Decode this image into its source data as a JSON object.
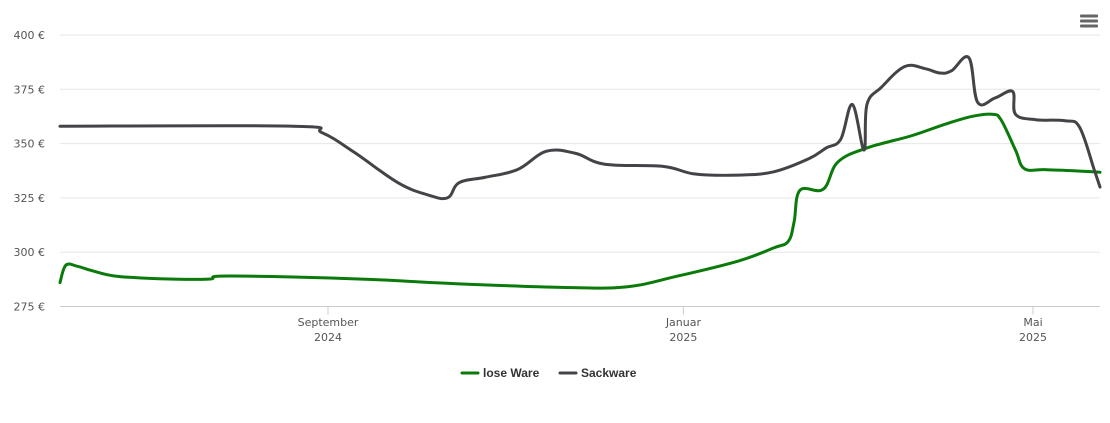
{
  "chart_data": {
    "type": "line",
    "title": "",
    "xlabel": "",
    "ylabel": "",
    "ylim": [
      275,
      400
    ],
    "yticks": [
      {
        "value": 275,
        "label": "275 €"
      },
      {
        "value": 300,
        "label": "300 €"
      },
      {
        "value": 325,
        "label": "325 €"
      },
      {
        "value": 350,
        "label": "350 €"
      },
      {
        "value": 375,
        "label": "375 €"
      },
      {
        "value": 400,
        "label": "400 €"
      }
    ],
    "xlim": [
      "2024-06-01",
      "2025-05-24"
    ],
    "xticks": [
      {
        "date": "2024-09-01",
        "month": "September",
        "year": "2024"
      },
      {
        "date": "2025-01-01",
        "month": "Januar",
        "year": "2025"
      },
      {
        "date": "2025-05-01",
        "month": "Mai",
        "year": "2025"
      }
    ],
    "grid": "horizontal",
    "legend_position": "bottom-center",
    "series": [
      {
        "name": "lose Ware",
        "color": "#0a7a0a",
        "points": [
          [
            "2024-06-01",
            286
          ],
          [
            "2024-06-03",
            294
          ],
          [
            "2024-06-07",
            293.5
          ],
          [
            "2024-06-12",
            291.5
          ],
          [
            "2024-06-20",
            289
          ],
          [
            "2024-07-05",
            287.8
          ],
          [
            "2024-07-22",
            287.6
          ],
          [
            "2024-07-26",
            289
          ],
          [
            "2024-08-20",
            288.6
          ],
          [
            "2024-09-15",
            287.5
          ],
          [
            "2024-10-15",
            285.5
          ],
          [
            "2024-11-20",
            283.8
          ],
          [
            "2024-12-12",
            284
          ],
          [
            "2024-12-30",
            289
          ],
          [
            "2025-01-20",
            296
          ],
          [
            "2025-02-01",
            302
          ],
          [
            "2025-02-06",
            305
          ],
          [
            "2025-02-08",
            314
          ],
          [
            "2025-02-10",
            328.5
          ],
          [
            "2025-02-18",
            329
          ],
          [
            "2025-02-23",
            341.5
          ],
          [
            "2025-03-05",
            348
          ],
          [
            "2025-03-20",
            353.5
          ],
          [
            "2025-04-01",
            359
          ],
          [
            "2025-04-10",
            362.5
          ],
          [
            "2025-04-17",
            363.5
          ],
          [
            "2025-04-20",
            361
          ],
          [
            "2025-04-25",
            347
          ],
          [
            "2025-04-28",
            338.5
          ],
          [
            "2025-05-05",
            338
          ],
          [
            "2025-05-15",
            337.5
          ],
          [
            "2025-05-24",
            336.8
          ]
        ]
      },
      {
        "name": "Sackware",
        "color": "#444448",
        "points": [
          [
            "2024-06-01",
            358
          ],
          [
            "2024-08-20",
            358
          ],
          [
            "2024-08-30",
            355
          ],
          [
            "2024-09-10",
            346
          ],
          [
            "2024-09-25",
            332
          ],
          [
            "2024-10-05",
            326.5
          ],
          [
            "2024-10-12",
            325
          ],
          [
            "2024-10-16",
            332
          ],
          [
            "2024-10-25",
            334.5
          ],
          [
            "2024-11-05",
            338
          ],
          [
            "2024-11-15",
            346.5
          ],
          [
            "2024-11-25",
            345.5
          ],
          [
            "2024-12-05",
            340.5
          ],
          [
            "2024-12-25",
            339.5
          ],
          [
            "2025-01-05",
            336
          ],
          [
            "2025-01-20",
            335.5
          ],
          [
            "2025-02-01",
            337
          ],
          [
            "2025-02-13",
            343
          ],
          [
            "2025-02-19",
            348
          ],
          [
            "2025-02-24",
            352
          ],
          [
            "2025-02-28",
            368
          ],
          [
            "2025-03-04",
            347
          ],
          [
            "2025-03-05",
            368
          ],
          [
            "2025-03-10",
            376
          ],
          [
            "2025-03-18",
            385.5
          ],
          [
            "2025-03-25",
            384.5
          ],
          [
            "2025-03-30",
            382.5
          ],
          [
            "2025-04-03",
            383.5
          ],
          [
            "2025-04-09",
            389.5
          ],
          [
            "2025-04-12",
            369
          ],
          [
            "2025-04-18",
            371
          ],
          [
            "2025-04-24",
            374
          ],
          [
            "2025-04-25",
            363.5
          ],
          [
            "2025-05-02",
            361
          ],
          [
            "2025-05-12",
            360.5
          ],
          [
            "2025-05-17",
            357.5
          ],
          [
            "2025-05-22",
            338
          ],
          [
            "2025-05-24",
            330
          ]
        ]
      }
    ]
  },
  "menu": {
    "icon": "hamburger-menu-icon"
  }
}
